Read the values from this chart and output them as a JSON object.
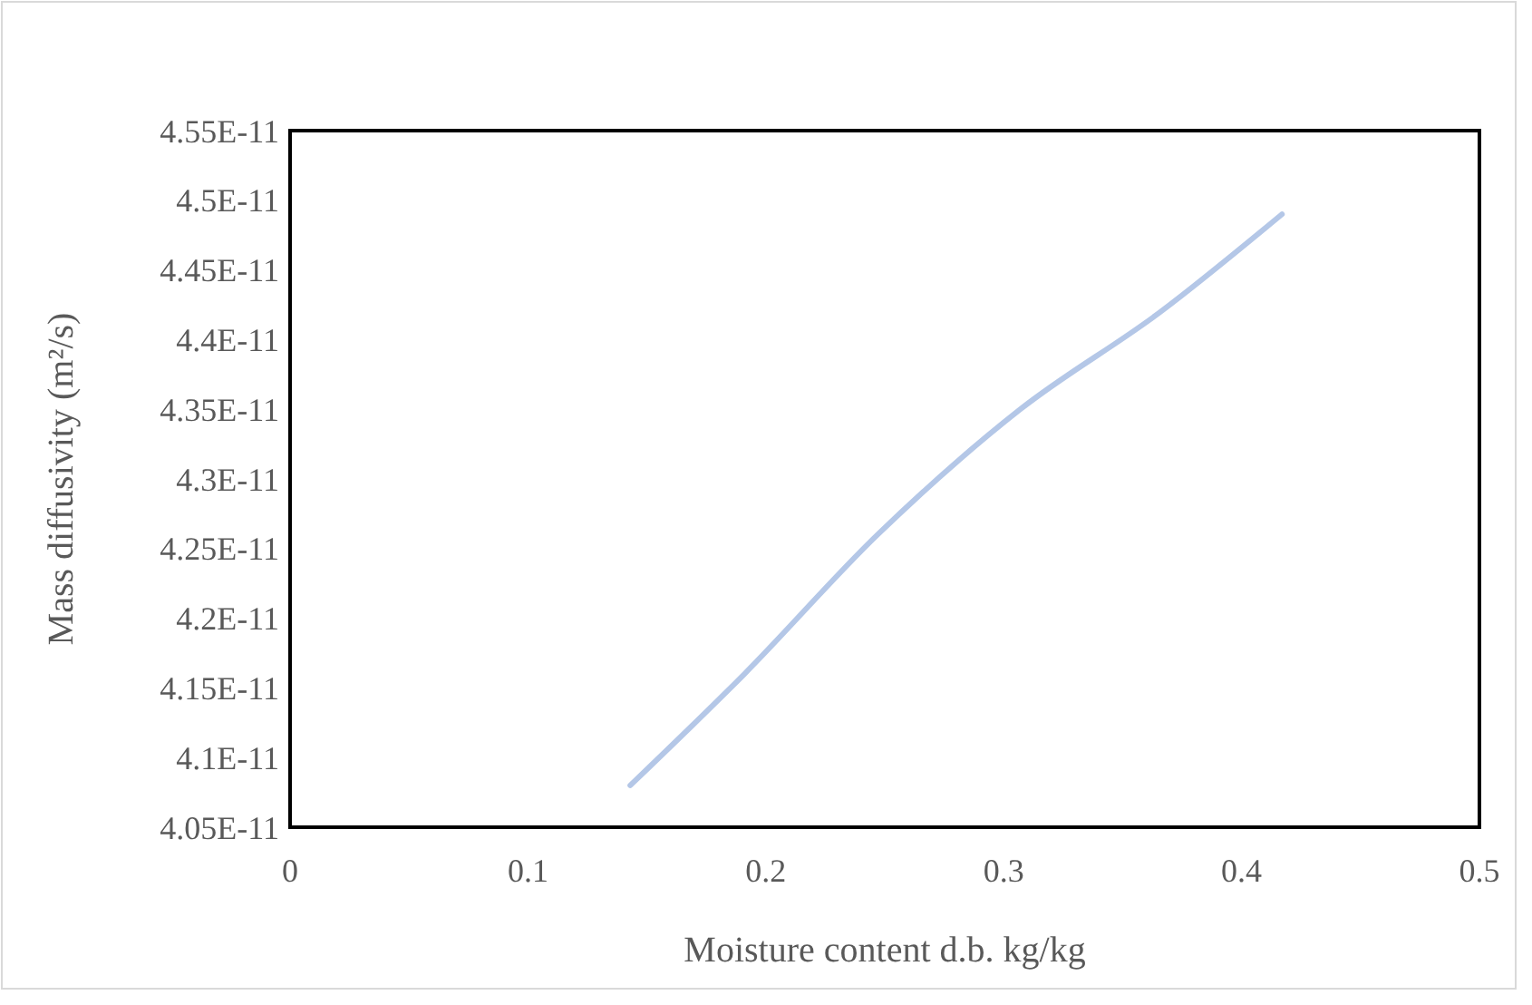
{
  "chart_data": {
    "type": "line",
    "xlabel": "Moisture content d.b. kg/kg",
    "ylabel": "Mass diffusivity (m²/s)",
    "x": [
      0.143,
      0.191,
      0.247,
      0.307,
      0.366,
      0.417
    ],
    "series": [
      {
        "color": "#b4c7e7",
        "values": [
          4.08e-11,
          4.16e-11,
          4.26e-11,
          4.35e-11,
          4.42e-11,
          4.49e-11
        ]
      }
    ],
    "xlim": [
      0,
      0.5
    ],
    "xticks": [
      0,
      0.1,
      0.2,
      0.3,
      0.4,
      0.5
    ],
    "ylim": [
      4.05e-11,
      4.55e-11
    ],
    "yticks": [
      {
        "value": 4.05e-11,
        "label": "4.05E-11"
      },
      {
        "value": 4.1e-11,
        "label": "4.1E-11"
      },
      {
        "value": 4.15e-11,
        "label": "4.15E-11"
      },
      {
        "value": 4.2e-11,
        "label": "4.2E-11"
      },
      {
        "value": 4.25e-11,
        "label": "4.25E-11"
      },
      {
        "value": 4.3e-11,
        "label": "4.3E-11"
      },
      {
        "value": 4.35e-11,
        "label": "4.35E-11"
      },
      {
        "value": 4.4e-11,
        "label": "4.4E-11"
      },
      {
        "value": 4.45e-11,
        "label": "4.45E-11"
      },
      {
        "value": 4.5e-11,
        "label": "4.5E-11"
      },
      {
        "value": 4.55e-11,
        "label": "4.55E-11"
      }
    ],
    "line_style": "solid"
  }
}
